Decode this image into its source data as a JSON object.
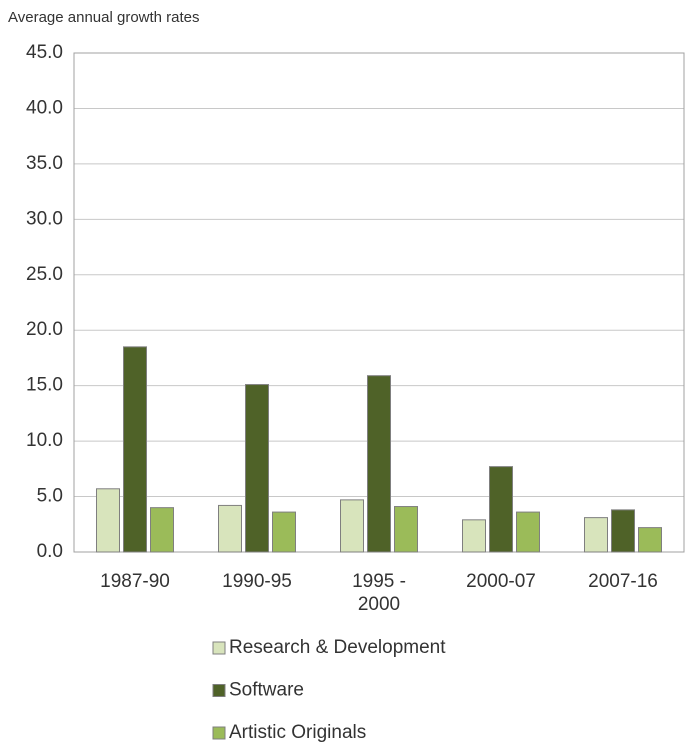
{
  "chart_data": {
    "type": "bar",
    "subtitle": "Average annual growth rates",
    "categories": [
      "1987-90",
      "1990-95",
      "1995 - 2000",
      "2000-07",
      "2007-16"
    ],
    "series": [
      {
        "name": "Research & Development",
        "color": "#d8e4bc",
        "values": [
          5.7,
          4.2,
          4.7,
          2.9,
          3.1
        ]
      },
      {
        "name": "Software",
        "color": "#4f6228",
        "values": [
          18.5,
          15.1,
          15.9,
          7.7,
          3.8
        ]
      },
      {
        "name": "Artistic Originals",
        "color": "#9bbb59",
        "values": [
          4.0,
          3.6,
          4.1,
          3.6,
          2.2
        ]
      }
    ],
    "ylim": [
      0,
      45
    ],
    "yticks": [
      {
        "value": 0,
        "label": "0.0"
      },
      {
        "value": 5,
        "label": "5.0"
      },
      {
        "value": 10,
        "label": "10.0"
      },
      {
        "value": 15,
        "label": "15.0"
      },
      {
        "value": 20,
        "label": "20.0"
      },
      {
        "value": 25,
        "label": "25.0"
      },
      {
        "value": 30,
        "label": "30.0"
      },
      {
        "value": 35,
        "label": "35.0"
      },
      {
        "value": 40,
        "label": "40.0"
      },
      {
        "value": 45,
        "label": "45.0"
      }
    ],
    "grid": true
  }
}
